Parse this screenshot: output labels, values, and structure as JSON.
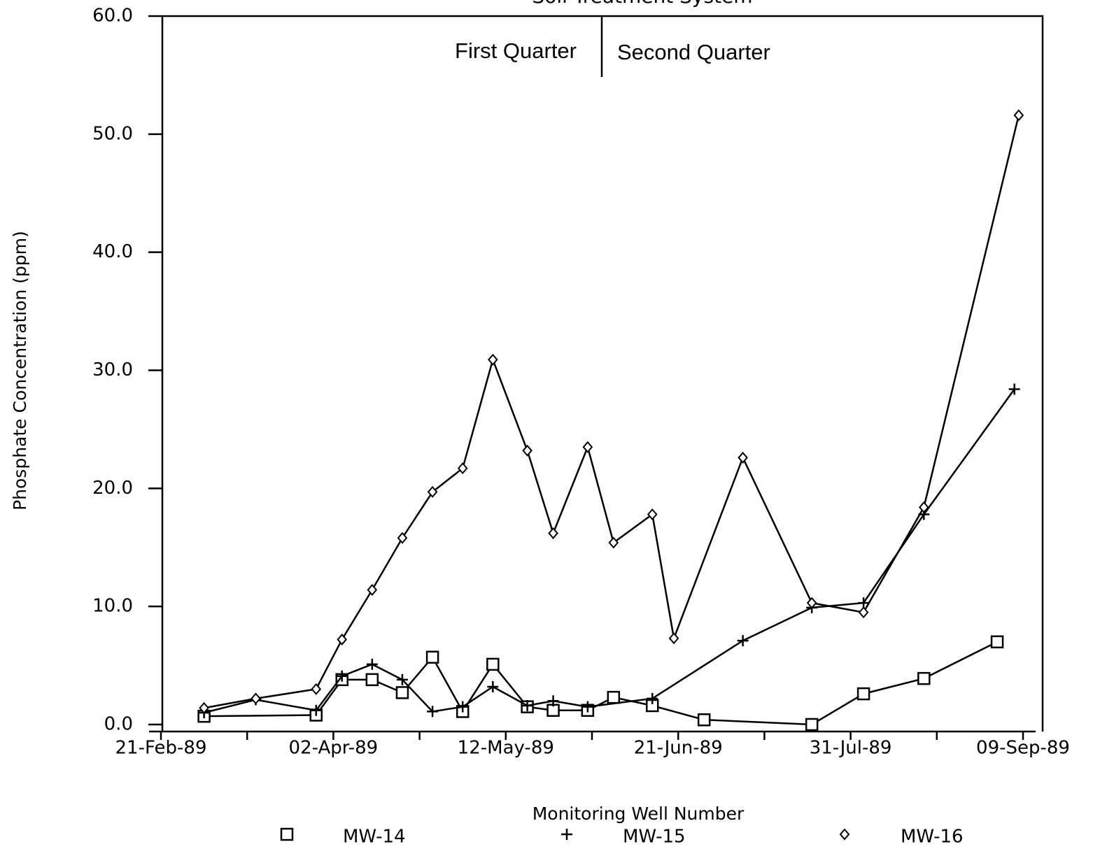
{
  "chart_data": {
    "type": "line",
    "title": "Soil Treatment System",
    "annotations": [
      "First Quarter",
      "Second Quarter"
    ],
    "x_label": "Monitoring Well Number",
    "y_label": "Phosphate Concentration (ppm)",
    "xlim": [
      "1989-02-21",
      "1989-09-09"
    ],
    "xticks": [
      {
        "value": "1989-02-21",
        "label": "21-Feb-89"
      },
      {
        "value": "1989-04-02",
        "label": "02-Apr-89"
      },
      {
        "value": "1989-05-12",
        "label": "12-May-89"
      },
      {
        "value": "1989-06-21",
        "label": "21-Jun-89"
      },
      {
        "value": "1989-07-31",
        "label": "31-Jul-89"
      },
      {
        "value": "1989-09-09",
        "label": "09-Sep-89"
      }
    ],
    "xminorticks": [
      "1989-03-13",
      "1989-04-22",
      "1989-06-01",
      "1989-07-11",
      "1989-08-20"
    ],
    "ylim": [
      0,
      60
    ],
    "yticks": [
      {
        "value": 0,
        "label": "0.0"
      },
      {
        "value": 10,
        "label": "10.0"
      },
      {
        "value": 20,
        "label": "20.0"
      },
      {
        "value": 30,
        "label": "30.0"
      },
      {
        "value": 40,
        "label": "40.0"
      },
      {
        "value": 50,
        "label": "50.0"
      },
      {
        "value": 60,
        "label": "60.0"
      }
    ],
    "series": [
      {
        "name": "MW-14",
        "marker": "square",
        "color": "#000000",
        "x": [
          "1989-03-03",
          "1989-03-29",
          "1989-04-04",
          "1989-04-11",
          "1989-04-18",
          "1989-04-25",
          "1989-05-02",
          "1989-05-09",
          "1989-05-17",
          "1989-05-23",
          "1989-05-31",
          "1989-06-06",
          "1989-06-15",
          "1989-06-27",
          "1989-07-22",
          "1989-08-03",
          "1989-08-17",
          "1989-09-03"
        ],
        "values": [
          0.7,
          0.8,
          3.8,
          3.8,
          2.7,
          5.7,
          1.1,
          5.1,
          1.5,
          1.2,
          1.2,
          2.3,
          1.6,
          0.4,
          0.0,
          2.6,
          3.9,
          7.0
        ]
      },
      {
        "name": "MW-15",
        "marker": "plus",
        "color": "#000000",
        "x": [
          "1989-03-03",
          "1989-03-15",
          "1989-03-29",
          "1989-04-04",
          "1989-04-11",
          "1989-04-18",
          "1989-04-25",
          "1989-05-02",
          "1989-05-09",
          "1989-05-17",
          "1989-05-23",
          "1989-05-31",
          "1989-06-15",
          "1989-07-06",
          "1989-07-22",
          "1989-08-03",
          "1989-08-17",
          "1989-09-07"
        ],
        "values": [
          1.0,
          2.1,
          1.2,
          4.1,
          5.1,
          3.8,
          1.1,
          1.5,
          3.2,
          1.6,
          2.0,
          1.5,
          2.2,
          7.1,
          9.9,
          10.3,
          17.8,
          28.4
        ]
      },
      {
        "name": "MW-16",
        "marker": "diamond",
        "color": "#000000",
        "x": [
          "1989-03-03",
          "1989-03-15",
          "1989-03-29",
          "1989-04-04",
          "1989-04-11",
          "1989-04-18",
          "1989-04-25",
          "1989-05-02",
          "1989-05-09",
          "1989-05-17",
          "1989-05-23",
          "1989-05-31",
          "1989-06-06",
          "1989-06-15",
          "1989-06-20",
          "1989-07-06",
          "1989-07-22",
          "1989-08-03",
          "1989-08-17",
          "1989-09-08"
        ],
        "values": [
          1.4,
          2.2,
          3.0,
          7.2,
          11.4,
          15.8,
          19.7,
          21.7,
          30.9,
          23.2,
          16.2,
          23.5,
          15.4,
          17.8,
          7.3,
          22.6,
          10.3,
          9.5,
          18.4,
          51.6
        ]
      }
    ]
  }
}
